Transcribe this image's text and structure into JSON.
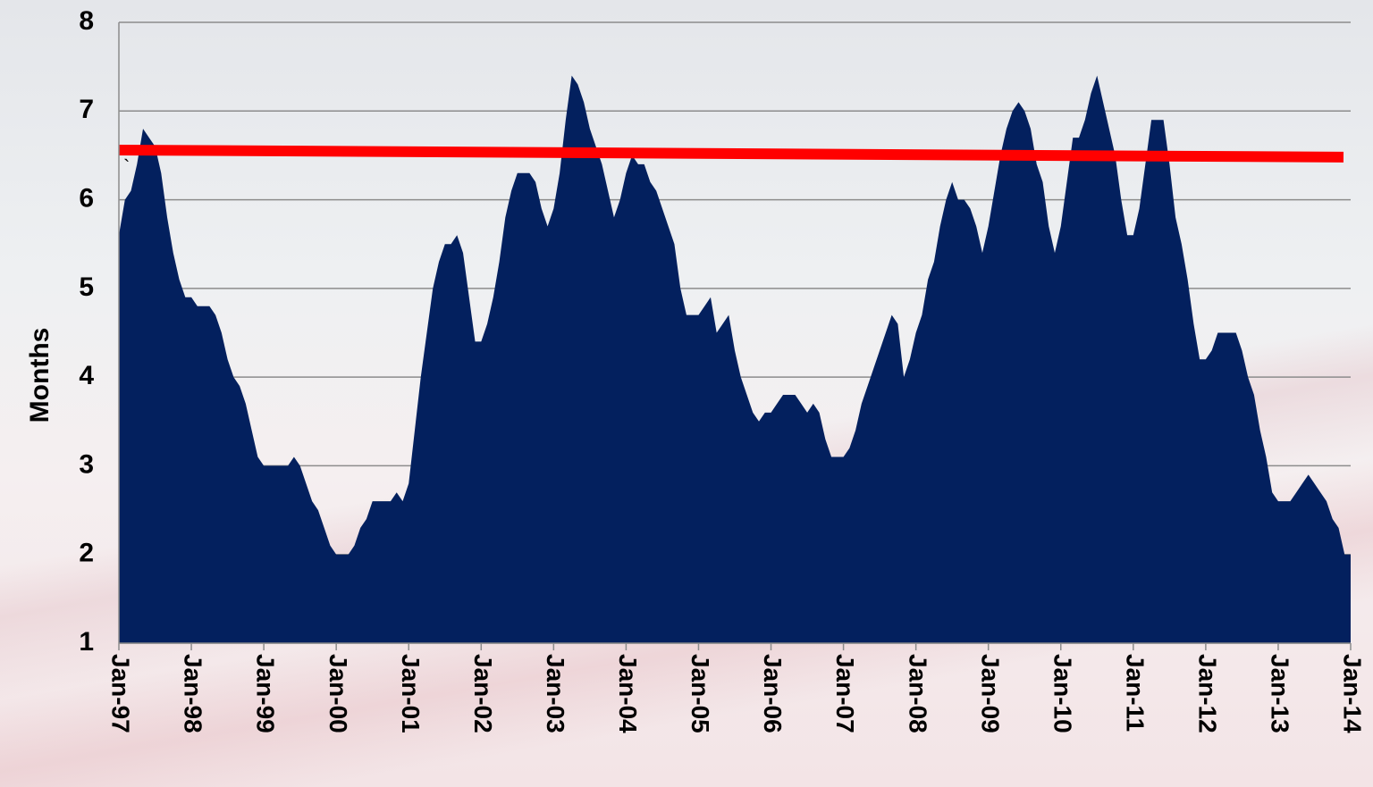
{
  "chart_data": {
    "type": "area",
    "y_label": "Months",
    "annotation": "`",
    "categories": [
      "Jan-97",
      null,
      null,
      null,
      null,
      null,
      null,
      null,
      null,
      null,
      null,
      null,
      "Jan-98",
      null,
      null,
      null,
      null,
      null,
      null,
      null,
      null,
      null,
      null,
      null,
      "Jan-99",
      null,
      null,
      null,
      null,
      null,
      null,
      null,
      null,
      null,
      null,
      null,
      "Jan-00",
      null,
      null,
      null,
      null,
      null,
      null,
      null,
      null,
      null,
      null,
      null,
      "Jan-01",
      null,
      null,
      null,
      null,
      null,
      null,
      null,
      null,
      null,
      null,
      null,
      "Jan-02",
      null,
      null,
      null,
      null,
      null,
      null,
      null,
      null,
      null,
      null,
      null,
      "Jan-03",
      null,
      null,
      null,
      null,
      null,
      null,
      null,
      null,
      null,
      null,
      null,
      "Jan-04",
      null,
      null,
      null,
      null,
      null,
      null,
      null,
      null,
      null,
      null,
      null,
      "Jan-05",
      null,
      null,
      null,
      null,
      null,
      null,
      null,
      null,
      null,
      null,
      null,
      "Jan-06",
      null,
      null,
      null,
      null,
      null,
      null,
      null,
      null,
      null,
      null,
      null,
      "Jan-07",
      null,
      null,
      null,
      null,
      null,
      null,
      null,
      null,
      null,
      null,
      null,
      "Jan-08",
      null,
      null,
      null,
      null,
      null,
      null,
      null,
      null,
      null,
      null,
      null,
      "Jan-09",
      null,
      null,
      null,
      null,
      null,
      null,
      null,
      null,
      null,
      null,
      null,
      "Jan-10",
      null,
      null,
      null,
      null,
      null,
      null,
      null,
      null,
      null,
      null,
      null,
      "Jan-11",
      null,
      null,
      null,
      null,
      null,
      null,
      null,
      null,
      null,
      null,
      null,
      "Jan-12",
      null,
      null,
      null,
      null,
      null,
      null,
      null,
      null,
      null,
      null,
      null,
      "Jan-13",
      null,
      null,
      null,
      null,
      null,
      null,
      null,
      null,
      null,
      null,
      null,
      "Jan-14"
    ],
    "values": [
      5.6,
      6.0,
      6.1,
      6.4,
      6.8,
      6.7,
      6.6,
      6.3,
      5.8,
      5.4,
      5.1,
      4.9,
      4.9,
      4.8,
      4.8,
      4.8,
      4.7,
      4.5,
      4.2,
      4.0,
      3.9,
      3.7,
      3.4,
      3.1,
      3.0,
      3.0,
      3.0,
      3.0,
      3.0,
      3.1,
      3.0,
      2.8,
      2.6,
      2.5,
      2.3,
      2.1,
      2.0,
      2.0,
      2.0,
      2.1,
      2.3,
      2.4,
      2.6,
      2.6,
      2.6,
      2.6,
      2.7,
      2.6,
      2.8,
      3.4,
      4.0,
      4.5,
      5.0,
      5.3,
      5.5,
      5.5,
      5.6,
      5.4,
      4.9,
      4.4,
      4.4,
      4.6,
      4.9,
      5.3,
      5.8,
      6.1,
      6.3,
      6.3,
      6.3,
      6.2,
      5.9,
      5.7,
      5.9,
      6.3,
      6.9,
      7.4,
      7.3,
      7.1,
      6.8,
      6.6,
      6.4,
      6.1,
      5.8,
      6.0,
      6.3,
      6.5,
      6.4,
      6.4,
      6.2,
      6.1,
      5.9,
      5.7,
      5.5,
      5.0,
      4.7,
      4.7,
      4.7,
      4.8,
      4.9,
      4.5,
      4.6,
      4.7,
      4.3,
      4.0,
      3.8,
      3.6,
      3.5,
      3.6,
      3.6,
      3.7,
      3.8,
      3.8,
      3.8,
      3.7,
      3.6,
      3.7,
      3.6,
      3.3,
      3.1,
      3.1,
      3.1,
      3.2,
      3.4,
      3.7,
      3.9,
      4.1,
      4.3,
      4.5,
      4.7,
      4.6,
      4.0,
      4.2,
      4.5,
      4.7,
      5.1,
      5.3,
      5.7,
      6.0,
      6.2,
      6.0,
      6.0,
      5.9,
      5.7,
      5.4,
      5.7,
      6.1,
      6.5,
      6.8,
      7.0,
      7.1,
      7.0,
      6.8,
      6.4,
      6.2,
      5.7,
      5.4,
      5.7,
      6.2,
      6.7,
      6.7,
      6.9,
      7.2,
      7.4,
      7.1,
      6.8,
      6.5,
      6.0,
      5.6,
      5.6,
      5.9,
      6.4,
      6.9,
      6.9,
      6.9,
      6.4,
      5.8,
      5.5,
      5.1,
      4.6,
      4.2,
      4.2,
      4.3,
      4.5,
      4.5,
      4.5,
      4.5,
      4.3,
      4.0,
      3.8,
      3.4,
      3.1,
      2.7,
      2.6,
      2.6,
      2.6,
      2.7,
      2.8,
      2.9,
      2.8,
      2.7,
      2.6,
      2.4,
      2.3,
      2.0,
      2.0
    ],
    "color": "#03205e",
    "trend_line": {
      "values": [
        6.56,
        6.48
      ],
      "color": "#ff0000"
    },
    "ylim": [
      1,
      8
    ],
    "yticks": [
      1,
      2,
      3,
      4,
      5,
      6,
      7,
      8
    ],
    "grid": true
  }
}
